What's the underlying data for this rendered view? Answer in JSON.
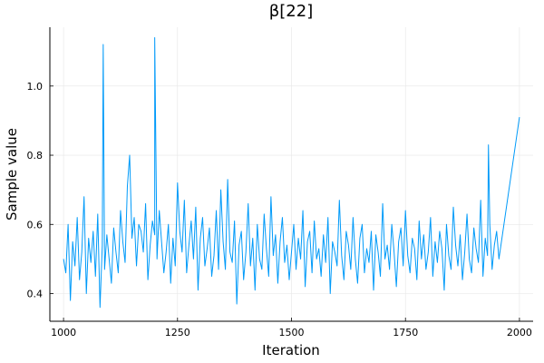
{
  "chart_data": {
    "type": "line",
    "title": "β[22]",
    "xlabel": "Iteration",
    "ylabel": "Sample value",
    "xlim": [
      970,
      2030
    ],
    "ylim": [
      0.32,
      1.17
    ],
    "xticks": [
      1000,
      1250,
      1500,
      1750,
      2000
    ],
    "xtick_labels": [
      "1000",
      "1250",
      "1500",
      "1750",
      "2000"
    ],
    "yticks": [
      0.4,
      0.6,
      0.8,
      1.0
    ],
    "ytick_labels": [
      "0.4",
      "0.6",
      "0.8",
      "1.0"
    ],
    "grid": true,
    "legend": "none",
    "series": [
      {
        "color": "#009af9",
        "x_start": 1000,
        "x_step": 5,
        "values": [
          0.5,
          0.46,
          0.6,
          0.38,
          0.55,
          0.48,
          0.62,
          0.44,
          0.52,
          0.68,
          0.4,
          0.56,
          0.49,
          0.58,
          0.45,
          0.63,
          0.36,
          0.54,
          0.47,
          0.57,
          0.5,
          0.43,
          0.59,
          0.52,
          0.46,
          0.64,
          0.55,
          0.49,
          0.71,
          0.8,
          0.56,
          0.62,
          0.48,
          0.6,
          0.58,
          0.52,
          0.66,
          0.44,
          0.54,
          0.61,
          0.57,
          0.5,
          0.64,
          0.55,
          0.46,
          0.52,
          0.6,
          0.43,
          0.56,
          0.48,
          0.72,
          0.58,
          0.52,
          0.67,
          0.46,
          0.54,
          0.61,
          0.5,
          0.65,
          0.41,
          0.56,
          0.62,
          0.48,
          0.53,
          0.59,
          0.45,
          0.51,
          0.64,
          0.47,
          0.7,
          0.55,
          0.47,
          0.73,
          0.52,
          0.49,
          0.61,
          0.37,
          0.54,
          0.58,
          0.44,
          0.52,
          0.66,
          0.48,
          0.56,
          0.41,
          0.6,
          0.5,
          0.47,
          0.63,
          0.53,
          0.45,
          0.68,
          0.51,
          0.57,
          0.43,
          0.55,
          0.62,
          0.49,
          0.54,
          0.44,
          0.52,
          0.6,
          0.47,
          0.56,
          0.5,
          0.64,
          0.42,
          0.55,
          0.58,
          0.46,
          0.61,
          0.5,
          0.53,
          0.45,
          0.57,
          0.49,
          0.62,
          0.4,
          0.55,
          0.52,
          0.48,
          0.67,
          0.51,
          0.44,
          0.58,
          0.54,
          0.47,
          0.62,
          0.5,
          0.43,
          0.56,
          0.6,
          0.46,
          0.53,
          0.49,
          0.58,
          0.41,
          0.57,
          0.52,
          0.45,
          0.66,
          0.5,
          0.54,
          0.47,
          0.6,
          0.52,
          0.42,
          0.55,
          0.59,
          0.48,
          0.64,
          0.51,
          0.46,
          0.56,
          0.53,
          0.44,
          0.61,
          0.5,
          0.57,
          0.47,
          0.52,
          0.62,
          0.45,
          0.55,
          0.49,
          0.58,
          0.53,
          0.41,
          0.6,
          0.51,
          0.47,
          0.65,
          0.54,
          0.48,
          0.57,
          0.44,
          0.52,
          0.63,
          0.5,
          0.46,
          0.59,
          0.53,
          0.49,
          0.67,
          0.45,
          0.56,
          0.51,
          0.6,
          0.47,
          0.54,
          0.58,
          0.5
        ]
      }
    ],
    "spikes": [
      {
        "x": 1087,
        "y": 1.12
      },
      {
        "x": 1200,
        "y": 1.14
      },
      {
        "x": 1932,
        "y": 0.83
      },
      {
        "x": 2000,
        "y": 0.91
      }
    ]
  }
}
